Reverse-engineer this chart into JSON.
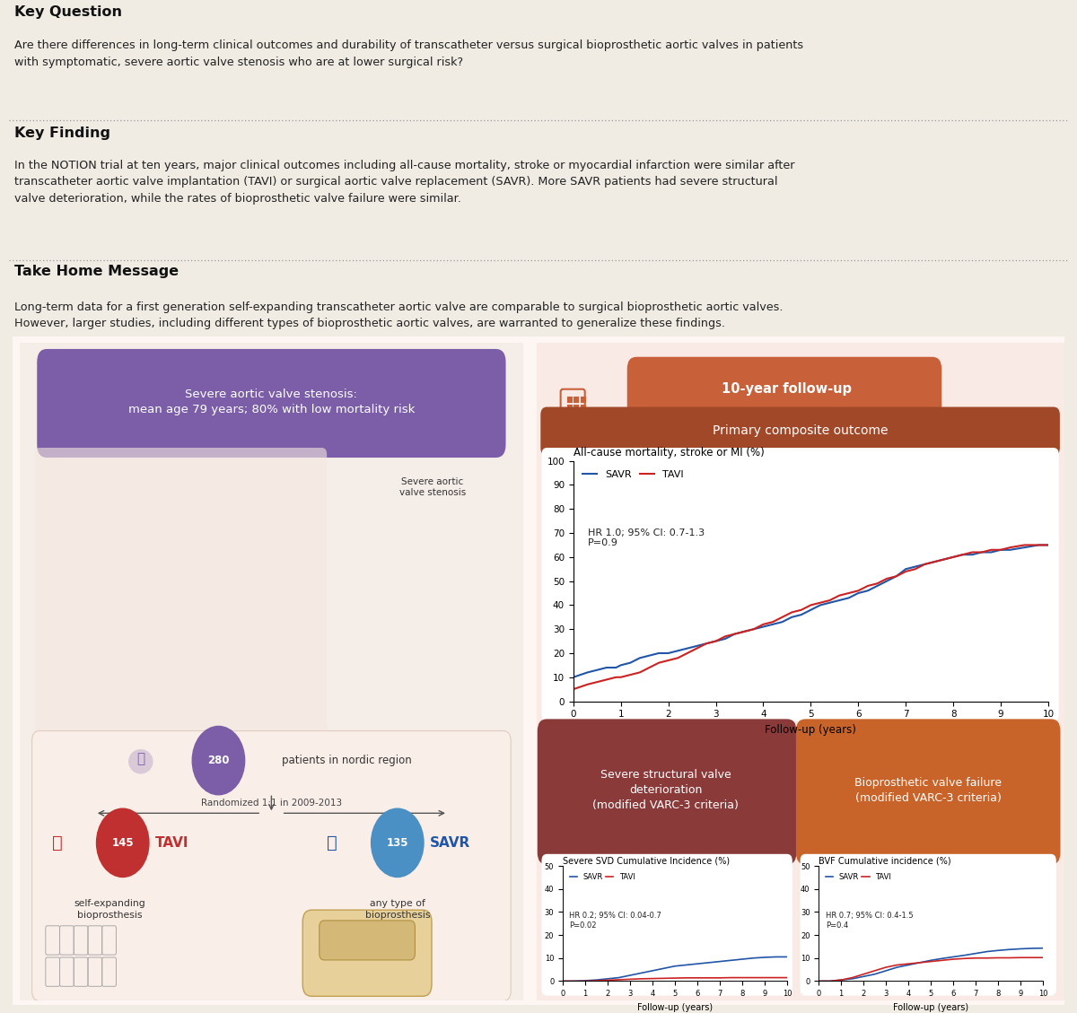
{
  "bg_color": "#f0ece4",
  "panel_bg": "#fdf6f2",
  "panel_edge": "#e0d0c8",
  "top_section_bg": "#f0ece4",
  "key_question_title": "Key Question",
  "key_question_text": "Are there differences in long-term clinical outcomes and durability of transcatheter versus surgical bioprosthetic aortic valves in patients\nwith symptomatic, severe aortic valve stenosis who are at lower surgical risk?",
  "key_finding_title": "Key Finding",
  "key_finding_text": "In the NOTION trial at ten years, major clinical outcomes including all-cause mortality, stroke or myocardial infarction were similar after\ntranscatheter aortic valve implantation (TAVI) or surgical aortic valve replacement (SAVR). More SAVR patients had severe structural\nvalve deterioration, while the rates of bioprosthetic valve failure were similar.",
  "take_home_title": "Take Home Message",
  "take_home_text": "Long-term data for a first generation self-expanding transcatheter aortic valve are comparable to surgical bioprosthetic aortic valves.\nHowever, larger studies, including different types of bioprosthetic aortic valves, are warranted to generalize these findings.",
  "left_panel_bg": "#f5ede8",
  "right_panel_bg": "#faeae6",
  "purple_box_color": "#7b5ea7",
  "purple_box_text": "Severe aortic valve stenosis:\nmean age 79 years; 80% with low mortality risk",
  "n_total_label": "patients in nordic region",
  "randomized_text": "Randomized 1:1 in 2009-2013",
  "tavi_sub": "self-expanding\nbioprosthesis",
  "savr_sub": "any type of\nbioprosthesis",
  "followup_label": "10-year follow-up",
  "followup_bg": "#c8603a",
  "primary_label": "Primary composite outcome",
  "primary_bg": "#a04828",
  "chart1_title": "All-cause mortality, stroke or MI (%)",
  "chart1_xlabel": "Follow-up (years)",
  "chart1_yticks": [
    0,
    10,
    20,
    30,
    40,
    50,
    60,
    70,
    80,
    90,
    100
  ],
  "chart1_xticks": [
    0,
    1,
    2,
    3,
    4,
    5,
    6,
    7,
    8,
    9,
    10
  ],
  "chart1_hr_text": "HR 1.0; 95% CI: 0.7-1.3\nP=0.9",
  "chart1_savr_color": "#2155a8",
  "chart1_tavi_color": "#cc2222",
  "chart1_savr_x": [
    0,
    0.15,
    0.3,
    0.5,
    0.7,
    0.9,
    1.0,
    1.2,
    1.4,
    1.6,
    1.8,
    2.0,
    2.2,
    2.4,
    2.6,
    2.8,
    3.0,
    3.2,
    3.4,
    3.6,
    3.8,
    4.0,
    4.2,
    4.4,
    4.6,
    4.8,
    5.0,
    5.2,
    5.4,
    5.6,
    5.8,
    6.0,
    6.2,
    6.4,
    6.6,
    6.8,
    7.0,
    7.2,
    7.4,
    7.6,
    7.8,
    8.0,
    8.2,
    8.4,
    8.6,
    8.8,
    9.0,
    9.2,
    9.5,
    9.8,
    10.0
  ],
  "chart1_savr_y": [
    10,
    11,
    12,
    13,
    14,
    14,
    15,
    16,
    18,
    19,
    20,
    20,
    21,
    22,
    23,
    24,
    25,
    26,
    28,
    29,
    30,
    31,
    32,
    33,
    35,
    36,
    38,
    40,
    41,
    42,
    43,
    45,
    46,
    48,
    50,
    52,
    55,
    56,
    57,
    58,
    59,
    60,
    61,
    61,
    62,
    62,
    63,
    63,
    64,
    65,
    65
  ],
  "chart1_tavi_x": [
    0,
    0.15,
    0.3,
    0.5,
    0.7,
    0.9,
    1.0,
    1.2,
    1.4,
    1.6,
    1.8,
    2.0,
    2.2,
    2.4,
    2.6,
    2.8,
    3.0,
    3.2,
    3.4,
    3.6,
    3.8,
    4.0,
    4.2,
    4.4,
    4.6,
    4.8,
    5.0,
    5.2,
    5.4,
    5.6,
    5.8,
    6.0,
    6.2,
    6.4,
    6.6,
    6.8,
    7.0,
    7.2,
    7.4,
    7.6,
    7.8,
    8.0,
    8.2,
    8.4,
    8.6,
    8.8,
    9.0,
    9.2,
    9.5,
    9.8,
    10.0
  ],
  "chart1_tavi_y": [
    5,
    6,
    7,
    8,
    9,
    10,
    10,
    11,
    12,
    14,
    16,
    17,
    18,
    20,
    22,
    24,
    25,
    27,
    28,
    29,
    30,
    32,
    33,
    35,
    37,
    38,
    40,
    41,
    42,
    44,
    45,
    46,
    48,
    49,
    51,
    52,
    54,
    55,
    57,
    58,
    59,
    60,
    61,
    62,
    62,
    63,
    63,
    64,
    65,
    65,
    65
  ],
  "svd_box_color": "#8b3a3a",
  "svd_box_text": "Severe structural valve\ndeterioration\n(modified VARC-3 criteria)",
  "bvf_box_color": "#c8632a",
  "bvf_box_text": "Bioprosthetic valve failure\n(modified VARC-3 criteria)",
  "chart2_title": "Severe SVD Cumulative Incidence (%)",
  "chart2_xlabel": "Follow-up (years)",
  "chart2_yticks": [
    0,
    10,
    20,
    30,
    40,
    50
  ],
  "chart2_xticks": [
    0,
    1,
    2,
    3,
    4,
    5,
    6,
    7,
    8,
    9,
    10
  ],
  "chart2_hr_text": "HR 0.2; 95% CI: 0.04-0.7\nP=0.02",
  "chart2_savr_color": "#2155a8",
  "chart2_tavi_color": "#cc2222",
  "chart2_savr_x": [
    0,
    0.5,
    1.0,
    1.5,
    2.0,
    2.5,
    3.0,
    3.5,
    4.0,
    4.5,
    5.0,
    5.5,
    6.0,
    6.5,
    7.0,
    7.5,
    8.0,
    8.5,
    9.0,
    9.5,
    10.0
  ],
  "chart2_savr_y": [
    0,
    0,
    0.2,
    0.5,
    1.0,
    1.5,
    2.5,
    3.5,
    4.5,
    5.5,
    6.5,
    7.0,
    7.5,
    8.0,
    8.5,
    9.0,
    9.5,
    10.0,
    10.3,
    10.5,
    10.5
  ],
  "chart2_tavi_x": [
    0,
    0.5,
    1.0,
    1.5,
    2.0,
    2.5,
    3.0,
    3.5,
    4.0,
    4.5,
    5.0,
    5.5,
    6.0,
    6.5,
    7.0,
    7.5,
    8.0,
    8.5,
    9.0,
    9.5,
    10.0
  ],
  "chart2_tavi_y": [
    0,
    0,
    0,
    0.2,
    0.4,
    0.6,
    0.8,
    1.0,
    1.1,
    1.2,
    1.3,
    1.4,
    1.4,
    1.4,
    1.4,
    1.5,
    1.5,
    1.5,
    1.5,
    1.5,
    1.5
  ],
  "chart3_title": "BVF Cumulative incidence (%)",
  "chart3_xlabel": "Follow-up (years)",
  "chart3_yticks": [
    0,
    10,
    20,
    30,
    40,
    50
  ],
  "chart3_xticks": [
    0,
    1,
    2,
    3,
    4,
    5,
    6,
    7,
    8,
    9,
    10
  ],
  "chart3_hr_text": "HR 0.7; 95% CI: 0.4-1.5\nP=0.4",
  "chart3_savr_color": "#2155a8",
  "chart3_tavi_color": "#cc2222",
  "chart3_savr_x": [
    0,
    0.5,
    1.0,
    1.5,
    2.0,
    2.5,
    3.0,
    3.5,
    4.0,
    4.5,
    5.0,
    5.5,
    6.0,
    6.5,
    7.0,
    7.5,
    8.0,
    8.5,
    9.0,
    9.5,
    10.0
  ],
  "chart3_savr_y": [
    0,
    0,
    0.5,
    1.0,
    2.0,
    3.0,
    4.5,
    6.0,
    7.0,
    8.0,
    9.0,
    9.8,
    10.5,
    11.2,
    12.0,
    12.8,
    13.3,
    13.7,
    14.0,
    14.2,
    14.3
  ],
  "chart3_tavi_x": [
    0,
    0.5,
    1.0,
    1.5,
    2.0,
    2.5,
    3.0,
    3.5,
    4.0,
    4.5,
    5.0,
    5.5,
    6.0,
    6.5,
    7.0,
    7.5,
    8.0,
    8.5,
    9.0,
    9.5,
    10.0
  ],
  "chart3_tavi_y": [
    0,
    0,
    0.5,
    1.5,
    3.0,
    4.5,
    6.0,
    7.0,
    7.5,
    8.0,
    8.5,
    9.0,
    9.5,
    9.8,
    10.0,
    10.0,
    10.1,
    10.1,
    10.2,
    10.2,
    10.2
  ],
  "purple_circle_color": "#7b5ea7",
  "tavi_circle_color": "#c03030",
  "savr_circle_color": "#4a90c4",
  "aortic_stenosis_label": "Severe aortic\nvalve stenosis"
}
